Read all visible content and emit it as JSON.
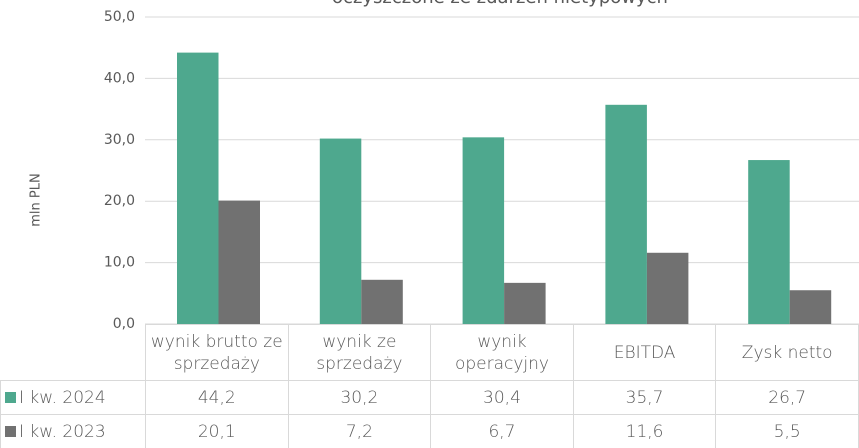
{
  "chart_data": {
    "type": "bar",
    "title": "oczyszczone ze zdarzeń nietypowych",
    "y_label": "mln PLN",
    "categories": [
      "wynik brutto ze sprzedaży",
      "wynik ze sprzedaży",
      "wynik operacyjny",
      "EBITDA",
      "Zysk netto"
    ],
    "series": [
      {
        "name": "I kw. 2024",
        "color": "#4ea88e",
        "values": [
          44.2,
          30.2,
          30.4,
          35.7,
          26.7
        ],
        "value_labels": [
          "44,2",
          "30,2",
          "30,4",
          "35,7",
          "26,7"
        ]
      },
      {
        "name": "I kw. 2023",
        "color": "#717171",
        "values": [
          20.1,
          7.2,
          6.7,
          11.6,
          5.5
        ],
        "value_labels": [
          "20,1",
          "7,2",
          "6,7",
          "11,6",
          "5,5"
        ]
      }
    ],
    "ylim": [
      0,
      50
    ],
    "yticks": [
      {
        "value": 0,
        "label": "0,0"
      },
      {
        "value": 10,
        "label": "10,0"
      },
      {
        "value": 20,
        "label": "20,0"
      },
      {
        "value": 30,
        "label": "30,0"
      },
      {
        "value": 40,
        "label": "40,0"
      },
      {
        "value": 50,
        "label": "50,0"
      }
    ],
    "grid": true
  }
}
